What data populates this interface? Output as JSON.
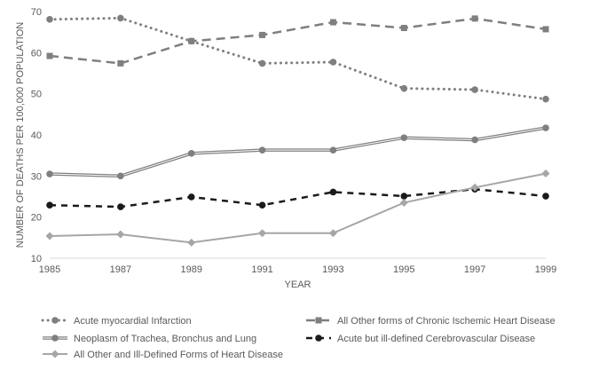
{
  "chart_data": {
    "type": "line",
    "title": "",
    "xlabel": "YEAR",
    "ylabel": "NUMBER OF DEATHS PER 100,000 POPULATION",
    "x": [
      1985,
      1987,
      1989,
      1991,
      1993,
      1995,
      1997,
      1999
    ],
    "x_ticks": [
      "1985",
      "1987",
      "1989",
      "1991",
      "1993",
      "1995",
      "1997",
      "1999"
    ],
    "ylim": [
      10,
      70
    ],
    "y_ticks": [
      "10",
      "20",
      "30",
      "40",
      "50",
      "60",
      "70"
    ],
    "grid": false,
    "legend_position": "bottom",
    "series": [
      {
        "name": "Acute myocardial Infarction",
        "values": [
          68.1,
          68.4,
          62.8,
          57.4,
          57.7,
          51.3,
          51.0,
          48.7
        ],
        "color": "#7f7f7f",
        "line_style": "dotted",
        "marker": "circle"
      },
      {
        "name": "All Other forms of Chronic Ischemic Heart Disease",
        "values": [
          59.2,
          57.4,
          62.8,
          64.3,
          67.4,
          66.0,
          68.3,
          65.7
        ],
        "color": "#7f7f7f",
        "line_style": "dashed",
        "marker": "square"
      },
      {
        "name": "Neoplasm of Trachea, Bronchus and Lung",
        "values": [
          30.5,
          30.0,
          35.5,
          36.3,
          36.3,
          39.3,
          38.8,
          41.7
        ],
        "color": "#7f7f7f",
        "line_style": "double",
        "marker": "circle"
      },
      {
        "name": "Acute but ill-defined Cerebrovascular Disease",
        "values": [
          22.9,
          22.5,
          24.9,
          22.9,
          26.1,
          25.1,
          26.8,
          25.1
        ],
        "color": "#1a1a1a",
        "line_style": "dashed-bold",
        "marker": "circle"
      },
      {
        "name": "All Other and Ill-Defined Forms of Heart Disease",
        "values": [
          15.4,
          15.8,
          13.8,
          16.1,
          16.1,
          23.5,
          27.2,
          30.6
        ],
        "color": "#a6a6a6",
        "line_style": "solid",
        "marker": "diamond"
      }
    ]
  }
}
